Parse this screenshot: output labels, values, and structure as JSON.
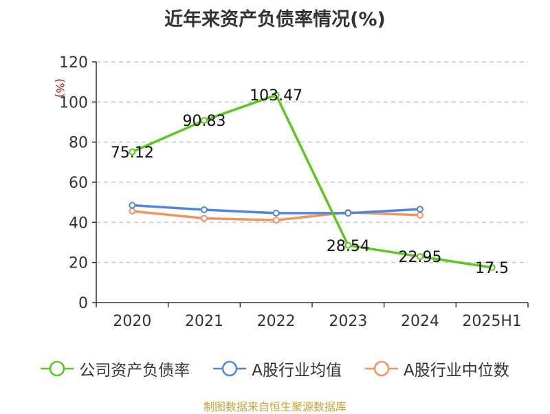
{
  "chart_data": {
    "type": "line",
    "title": "近年来资产负债率情况(%)",
    "ylabel": "(%)",
    "categories": [
      "2020",
      "2021",
      "2022",
      "2023",
      "2024",
      "2025H1"
    ],
    "ylim": [
      0,
      120
    ],
    "yticks": [
      0,
      20,
      40,
      60,
      80,
      100,
      120
    ],
    "grid": true,
    "legend_position": "bottom",
    "series": [
      {
        "name": "公司资产负债率",
        "color": "#5cc81f",
        "values": [
          75.12,
          90.83,
          103.47,
          28.54,
          22.95,
          17.5
        ],
        "data_labels": [
          "75.12",
          "90.83",
          "103.47",
          "28.54",
          "22.95",
          "17.5"
        ]
      },
      {
        "name": "A股行业均值",
        "color": "#4f86dd",
        "values": [
          48.5,
          46.3,
          44.6,
          44.6,
          46.6,
          null
        ]
      },
      {
        "name": "A股行业中位数",
        "color": "#f5925e",
        "values": [
          45.6,
          42.0,
          41.1,
          45.0,
          43.6,
          null
        ]
      }
    ]
  },
  "source": "制图数据来自恒生聚源数据库"
}
